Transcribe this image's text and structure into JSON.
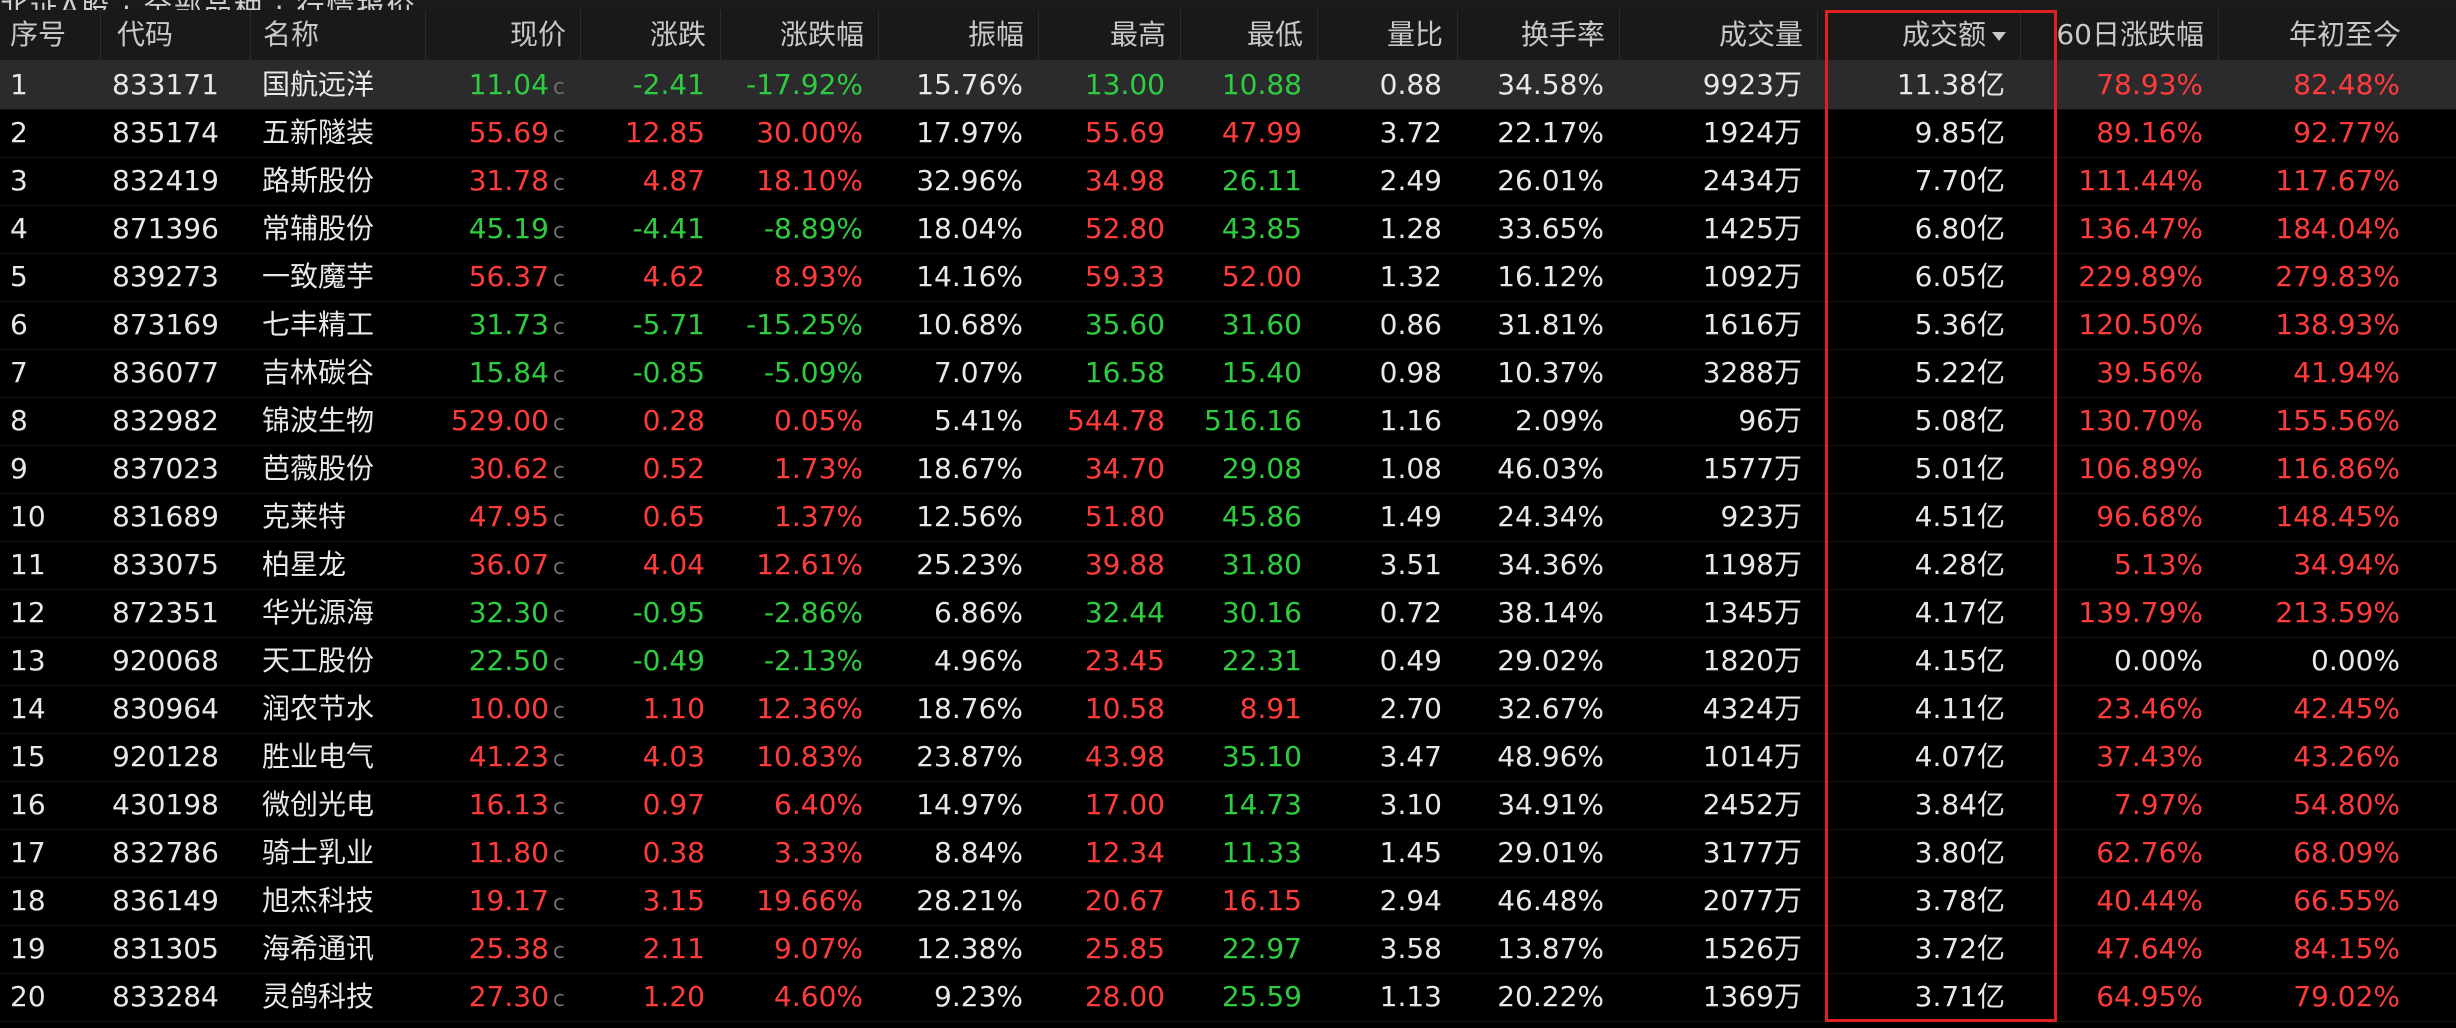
{
  "top_tab_text": "北证A股 · 全部品种 · 行情报价",
  "columns": {
    "seq": "序号",
    "code": "代码",
    "name": "名称",
    "price": "现价",
    "change": "涨跌",
    "change_pct": "涨跌幅",
    "amplitude": "振幅",
    "high": "最高",
    "low": "最低",
    "vol_ratio": "量比",
    "turnover_rate": "换手率",
    "volume": "成交量",
    "amount": "成交额",
    "chg_60d": "60日涨跌幅",
    "ytd": "年初至今"
  },
  "price_suffix": "c",
  "selected_row": 0,
  "rows": [
    {
      "seq": "1",
      "code": "833171",
      "name": "国航远洋",
      "price": "11.04",
      "price_dir": "green",
      "change": "-2.41",
      "change_pct": "-17.92%",
      "chg_dir": "green",
      "amplitude": "15.76%",
      "high": "13.00",
      "high_dir": "green",
      "low": "10.88",
      "low_dir": "green",
      "vol_ratio": "0.88",
      "turnover_rate": "34.58%",
      "volume": "9923万",
      "amount": "11.38亿",
      "chg_60d": "78.93%",
      "d60_dir": "red",
      "ytd": "82.48%",
      "ytd_dir": "red"
    },
    {
      "seq": "2",
      "code": "835174",
      "name": "五新隧装",
      "price": "55.69",
      "price_dir": "red",
      "change": "12.85",
      "change_pct": "30.00%",
      "chg_dir": "red",
      "amplitude": "17.97%",
      "high": "55.69",
      "high_dir": "red",
      "low": "47.99",
      "low_dir": "red",
      "vol_ratio": "3.72",
      "turnover_rate": "22.17%",
      "volume": "1924万",
      "amount": "9.85亿",
      "chg_60d": "89.16%",
      "d60_dir": "red",
      "ytd": "92.77%",
      "ytd_dir": "red"
    },
    {
      "seq": "3",
      "code": "832419",
      "name": "路斯股份",
      "price": "31.78",
      "price_dir": "red",
      "change": "4.87",
      "change_pct": "18.10%",
      "chg_dir": "red",
      "amplitude": "32.96%",
      "high": "34.98",
      "high_dir": "red",
      "low": "26.11",
      "low_dir": "green",
      "vol_ratio": "2.49",
      "turnover_rate": "26.01%",
      "volume": "2434万",
      "amount": "7.70亿",
      "chg_60d": "111.44%",
      "d60_dir": "red",
      "ytd": "117.67%",
      "ytd_dir": "red"
    },
    {
      "seq": "4",
      "code": "871396",
      "name": "常辅股份",
      "price": "45.19",
      "price_dir": "green",
      "change": "-4.41",
      "change_pct": "-8.89%",
      "chg_dir": "green",
      "amplitude": "18.04%",
      "high": "52.80",
      "high_dir": "red",
      "low": "43.85",
      "low_dir": "green",
      "vol_ratio": "1.28",
      "turnover_rate": "33.65%",
      "volume": "1425万",
      "amount": "6.80亿",
      "chg_60d": "136.47%",
      "d60_dir": "red",
      "ytd": "184.04%",
      "ytd_dir": "red"
    },
    {
      "seq": "5",
      "code": "839273",
      "name": "一致魔芋",
      "price": "56.37",
      "price_dir": "red",
      "change": "4.62",
      "change_pct": "8.93%",
      "chg_dir": "red",
      "amplitude": "14.16%",
      "high": "59.33",
      "high_dir": "red",
      "low": "52.00",
      "low_dir": "red",
      "vol_ratio": "1.32",
      "turnover_rate": "16.12%",
      "volume": "1092万",
      "amount": "6.05亿",
      "chg_60d": "229.89%",
      "d60_dir": "red",
      "ytd": "279.83%",
      "ytd_dir": "red"
    },
    {
      "seq": "6",
      "code": "873169",
      "name": "七丰精工",
      "price": "31.73",
      "price_dir": "green",
      "change": "-5.71",
      "change_pct": "-15.25%",
      "chg_dir": "green",
      "amplitude": "10.68%",
      "high": "35.60",
      "high_dir": "green",
      "low": "31.60",
      "low_dir": "green",
      "vol_ratio": "0.86",
      "turnover_rate": "31.81%",
      "volume": "1616万",
      "amount": "5.36亿",
      "chg_60d": "120.50%",
      "d60_dir": "red",
      "ytd": "138.93%",
      "ytd_dir": "red"
    },
    {
      "seq": "7",
      "code": "836077",
      "name": "吉林碳谷",
      "price": "15.84",
      "price_dir": "green",
      "change": "-0.85",
      "change_pct": "-5.09%",
      "chg_dir": "green",
      "amplitude": "7.07%",
      "high": "16.58",
      "high_dir": "green",
      "low": "15.40",
      "low_dir": "green",
      "vol_ratio": "0.98",
      "turnover_rate": "10.37%",
      "volume": "3288万",
      "amount": "5.22亿",
      "chg_60d": "39.56%",
      "d60_dir": "red",
      "ytd": "41.94%",
      "ytd_dir": "red"
    },
    {
      "seq": "8",
      "code": "832982",
      "name": "锦波生物",
      "price": "529.00",
      "price_dir": "red",
      "change": "0.28",
      "change_pct": "0.05%",
      "chg_dir": "red",
      "amplitude": "5.41%",
      "high": "544.78",
      "high_dir": "red",
      "low": "516.16",
      "low_dir": "green",
      "vol_ratio": "1.16",
      "turnover_rate": "2.09%",
      "volume": "96万",
      "amount": "5.08亿",
      "chg_60d": "130.70%",
      "d60_dir": "red",
      "ytd": "155.56%",
      "ytd_dir": "red"
    },
    {
      "seq": "9",
      "code": "837023",
      "name": "芭薇股份",
      "price": "30.62",
      "price_dir": "red",
      "change": "0.52",
      "change_pct": "1.73%",
      "chg_dir": "red",
      "amplitude": "18.67%",
      "high": "34.70",
      "high_dir": "red",
      "low": "29.08",
      "low_dir": "green",
      "vol_ratio": "1.08",
      "turnover_rate": "46.03%",
      "volume": "1577万",
      "amount": "5.01亿",
      "chg_60d": "106.89%",
      "d60_dir": "red",
      "ytd": "116.86%",
      "ytd_dir": "red"
    },
    {
      "seq": "10",
      "code": "831689",
      "name": "克莱特",
      "price": "47.95",
      "price_dir": "red",
      "change": "0.65",
      "change_pct": "1.37%",
      "chg_dir": "red",
      "amplitude": "12.56%",
      "high": "51.80",
      "high_dir": "red",
      "low": "45.86",
      "low_dir": "green",
      "vol_ratio": "1.49",
      "turnover_rate": "24.34%",
      "volume": "923万",
      "amount": "4.51亿",
      "chg_60d": "96.68%",
      "d60_dir": "red",
      "ytd": "148.45%",
      "ytd_dir": "red"
    },
    {
      "seq": "11",
      "code": "833075",
      "name": "柏星龙",
      "price": "36.07",
      "price_dir": "red",
      "change": "4.04",
      "change_pct": "12.61%",
      "chg_dir": "red",
      "amplitude": "25.23%",
      "high": "39.88",
      "high_dir": "red",
      "low": "31.80",
      "low_dir": "green",
      "vol_ratio": "3.51",
      "turnover_rate": "34.36%",
      "volume": "1198万",
      "amount": "4.28亿",
      "chg_60d": "5.13%",
      "d60_dir": "red",
      "ytd": "34.94%",
      "ytd_dir": "red"
    },
    {
      "seq": "12",
      "code": "872351",
      "name": "华光源海",
      "price": "32.30",
      "price_dir": "green",
      "change": "-0.95",
      "change_pct": "-2.86%",
      "chg_dir": "green",
      "amplitude": "6.86%",
      "high": "32.44",
      "high_dir": "green",
      "low": "30.16",
      "low_dir": "green",
      "vol_ratio": "0.72",
      "turnover_rate": "38.14%",
      "volume": "1345万",
      "amount": "4.17亿",
      "chg_60d": "139.79%",
      "d60_dir": "red",
      "ytd": "213.59%",
      "ytd_dir": "red"
    },
    {
      "seq": "13",
      "code": "920068",
      "name": "天工股份",
      "price": "22.50",
      "price_dir": "green",
      "change": "-0.49",
      "change_pct": "-2.13%",
      "chg_dir": "green",
      "amplitude": "4.96%",
      "high": "23.45",
      "high_dir": "red",
      "low": "22.31",
      "low_dir": "green",
      "vol_ratio": "0.49",
      "turnover_rate": "29.02%",
      "volume": "1820万",
      "amount": "4.15亿",
      "chg_60d": "0.00%",
      "d60_dir": "white",
      "ytd": "0.00%",
      "ytd_dir": "white"
    },
    {
      "seq": "14",
      "code": "830964",
      "name": "润农节水",
      "price": "10.00",
      "price_dir": "red",
      "change": "1.10",
      "change_pct": "12.36%",
      "chg_dir": "red",
      "amplitude": "18.76%",
      "high": "10.58",
      "high_dir": "red",
      "low": "8.91",
      "low_dir": "red",
      "vol_ratio": "2.70",
      "turnover_rate": "32.67%",
      "volume": "4324万",
      "amount": "4.11亿",
      "chg_60d": "23.46%",
      "d60_dir": "red",
      "ytd": "42.45%",
      "ytd_dir": "red"
    },
    {
      "seq": "15",
      "code": "920128",
      "name": "胜业电气",
      "price": "41.23",
      "price_dir": "red",
      "change": "4.03",
      "change_pct": "10.83%",
      "chg_dir": "red",
      "amplitude": "23.87%",
      "high": "43.98",
      "high_dir": "red",
      "low": "35.10",
      "low_dir": "green",
      "vol_ratio": "3.47",
      "turnover_rate": "48.96%",
      "volume": "1014万",
      "amount": "4.07亿",
      "chg_60d": "37.43%",
      "d60_dir": "red",
      "ytd": "43.26%",
      "ytd_dir": "red"
    },
    {
      "seq": "16",
      "code": "430198",
      "name": "微创光电",
      "price": "16.13",
      "price_dir": "red",
      "change": "0.97",
      "change_pct": "6.40%",
      "chg_dir": "red",
      "amplitude": "14.97%",
      "high": "17.00",
      "high_dir": "red",
      "low": "14.73",
      "low_dir": "green",
      "vol_ratio": "3.10",
      "turnover_rate": "34.91%",
      "volume": "2452万",
      "amount": "3.84亿",
      "chg_60d": "7.97%",
      "d60_dir": "red",
      "ytd": "54.80%",
      "ytd_dir": "red"
    },
    {
      "seq": "17",
      "code": "832786",
      "name": "骑士乳业",
      "price": "11.80",
      "price_dir": "red",
      "change": "0.38",
      "change_pct": "3.33%",
      "chg_dir": "red",
      "amplitude": "8.84%",
      "high": "12.34",
      "high_dir": "red",
      "low": "11.33",
      "low_dir": "green",
      "vol_ratio": "1.45",
      "turnover_rate": "29.01%",
      "volume": "3177万",
      "amount": "3.80亿",
      "chg_60d": "62.76%",
      "d60_dir": "red",
      "ytd": "68.09%",
      "ytd_dir": "red"
    },
    {
      "seq": "18",
      "code": "836149",
      "name": "旭杰科技",
      "price": "19.17",
      "price_dir": "red",
      "change": "3.15",
      "change_pct": "19.66%",
      "chg_dir": "red",
      "amplitude": "28.21%",
      "high": "20.67",
      "high_dir": "red",
      "low": "16.15",
      "low_dir": "red",
      "vol_ratio": "2.94",
      "turnover_rate": "46.48%",
      "volume": "2077万",
      "amount": "3.78亿",
      "chg_60d": "40.44%",
      "d60_dir": "red",
      "ytd": "66.55%",
      "ytd_dir": "red"
    },
    {
      "seq": "19",
      "code": "831305",
      "name": "海希通讯",
      "price": "25.38",
      "price_dir": "red",
      "change": "2.11",
      "change_pct": "9.07%",
      "chg_dir": "red",
      "amplitude": "12.38%",
      "high": "25.85",
      "high_dir": "red",
      "low": "22.97",
      "low_dir": "green",
      "vol_ratio": "3.58",
      "turnover_rate": "13.87%",
      "volume": "1526万",
      "amount": "3.72亿",
      "chg_60d": "47.64%",
      "d60_dir": "red",
      "ytd": "84.15%",
      "ytd_dir": "red"
    },
    {
      "seq": "20",
      "code": "833284",
      "name": "灵鸽科技",
      "price": "27.30",
      "price_dir": "red",
      "change": "1.20",
      "change_pct": "4.60%",
      "chg_dir": "red",
      "amplitude": "9.23%",
      "high": "28.00",
      "high_dir": "red",
      "low": "25.59",
      "low_dir": "green",
      "vol_ratio": "1.13",
      "turnover_rate": "20.22%",
      "volume": "1369万",
      "amount": "3.71亿",
      "chg_60d": "64.95%",
      "d60_dir": "red",
      "ytd": "79.02%",
      "ytd_dir": "red"
    }
  ],
  "colors": {
    "up": "#ff3b3b",
    "down": "#2ecc40",
    "flat": "#e8e8e8",
    "highlight": "#e02020"
  }
}
